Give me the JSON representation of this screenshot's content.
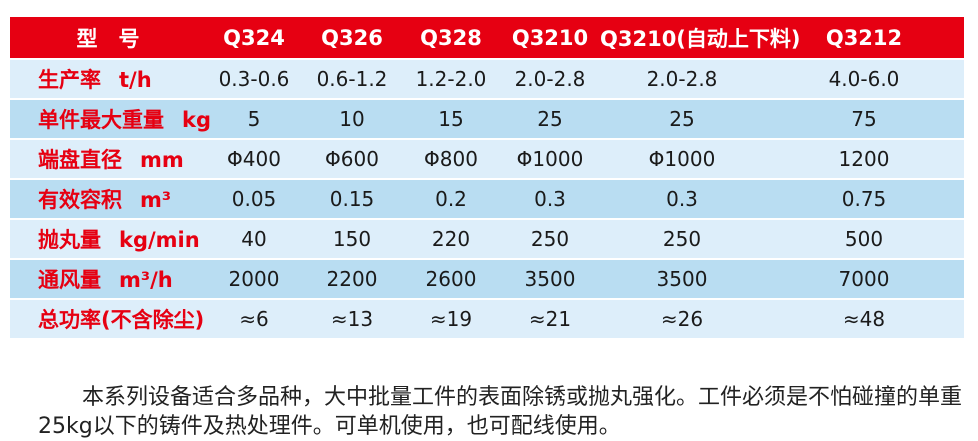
{
  "table": {
    "header": {
      "label": "型　号",
      "models": [
        "Q324",
        "Q326",
        "Q328",
        "Q3210",
        "Q3210(自动上下料)",
        "Q3212"
      ]
    },
    "rows": [
      {
        "label": "生产率",
        "unit": "t/h",
        "values": [
          "0.3-0.6",
          "0.6-1.2",
          "1.2-2.0",
          "2.0-2.8",
          "2.0-2.8",
          "4.0-6.0"
        ]
      },
      {
        "label": "单件最大重量",
        "unit": "kg",
        "values": [
          "5",
          "10",
          "15",
          "25",
          "25",
          "75"
        ]
      },
      {
        "label": "端盘直径",
        "unit": "mm",
        "values": [
          "Φ400",
          "Φ600",
          "Φ800",
          "Φ1000",
          "Φ1000",
          "1200"
        ]
      },
      {
        "label": "有效容积",
        "unit": "m³",
        "values": [
          "0.05",
          "0.15",
          "0.2",
          "0.3",
          "0.3",
          "0.75"
        ]
      },
      {
        "label": "抛丸量",
        "unit": "kg/min",
        "values": [
          "40",
          "150",
          "220",
          "250",
          "250",
          "500"
        ]
      },
      {
        "label": "通风量",
        "unit": "m³/h",
        "values": [
          "2000",
          "2200",
          "2600",
          "3500",
          "3500",
          "7000"
        ]
      },
      {
        "label": "总功率(不含除尘)",
        "unit": "",
        "values": [
          "≈6",
          "≈13",
          "≈19",
          "≈21",
          "≈26",
          "≈48"
        ]
      }
    ]
  },
  "description": "本系列设备适合多品种，大中批量工件的表面除锈或抛丸强化。工件必须是不怕碰撞的单重25kg以下的铸件及热处理件。可单机使用，也可配线使用。",
  "colors": {
    "header_red": "#e60012",
    "label_red": "#e60012",
    "row_light": "#ddeefa",
    "row_medium": "#b9ddf2",
    "value_text": "#1a1a1a"
  }
}
